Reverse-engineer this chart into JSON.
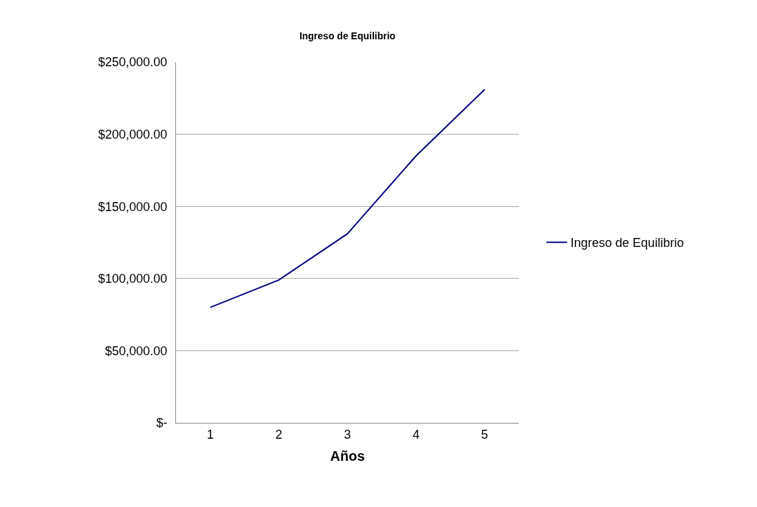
{
  "chart_data": {
    "type": "line",
    "title": "Ingreso de Equilibrio",
    "xlabel": "Años",
    "categories": [
      "1",
      "2",
      "3",
      "4",
      "5"
    ],
    "series": [
      {
        "name": "Ingreso de Equilibrio",
        "color": "#000080",
        "values": [
          80000,
          99000,
          131000,
          185000,
          231000
        ]
      }
    ],
    "ylim": [
      0,
      250000
    ],
    "yticks": [
      {
        "value": 0,
        "label": "$-"
      },
      {
        "value": 50000,
        "label": "$50,000.00"
      },
      {
        "value": 100000,
        "label": "$100,000.00"
      },
      {
        "value": 150000,
        "label": "$150,000.00"
      },
      {
        "value": 200000,
        "label": "$200,000.00"
      },
      {
        "value": 250000,
        "label": "$250,000.00"
      }
    ],
    "grid": "y",
    "legend": "right",
    "marker": "none",
    "line_style": "solid"
  }
}
